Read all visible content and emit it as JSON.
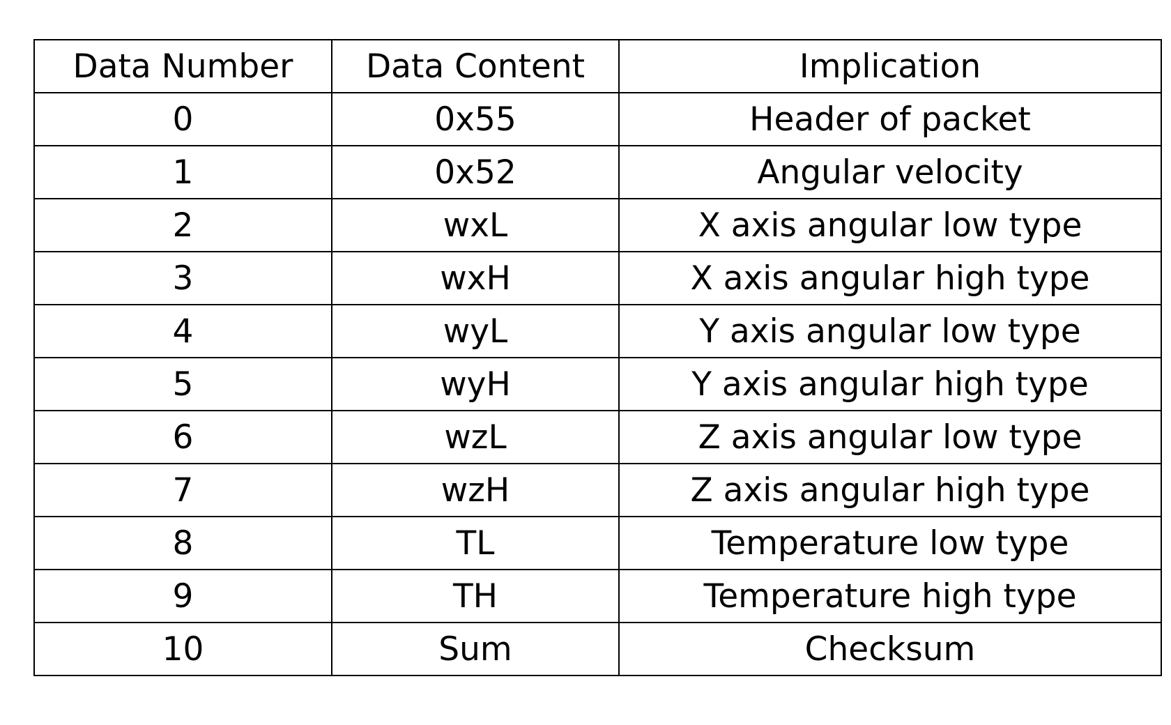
{
  "table": {
    "headers": [
      "Data Number",
      "Data Content",
      "Implication"
    ],
    "rows": [
      [
        "0",
        "0x55",
        "Header of packet"
      ],
      [
        "1",
        "0x52",
        "Angular velocity"
      ],
      [
        "2",
        "wxL",
        "X axis angular low type"
      ],
      [
        "3",
        "wxH",
        "X axis angular high type"
      ],
      [
        "4",
        "wyL",
        "Y axis angular low type"
      ],
      [
        "5",
        "wyH",
        "Y axis angular high type"
      ],
      [
        "6",
        "wzL",
        "Z axis angular low type"
      ],
      [
        "7",
        "wzH",
        "Z axis angular high type"
      ],
      [
        "8",
        "TL",
        "Temperature low type"
      ],
      [
        "9",
        "TH",
        "Temperature high type"
      ],
      [
        "10",
        "Sum",
        "Checksum"
      ]
    ]
  }
}
